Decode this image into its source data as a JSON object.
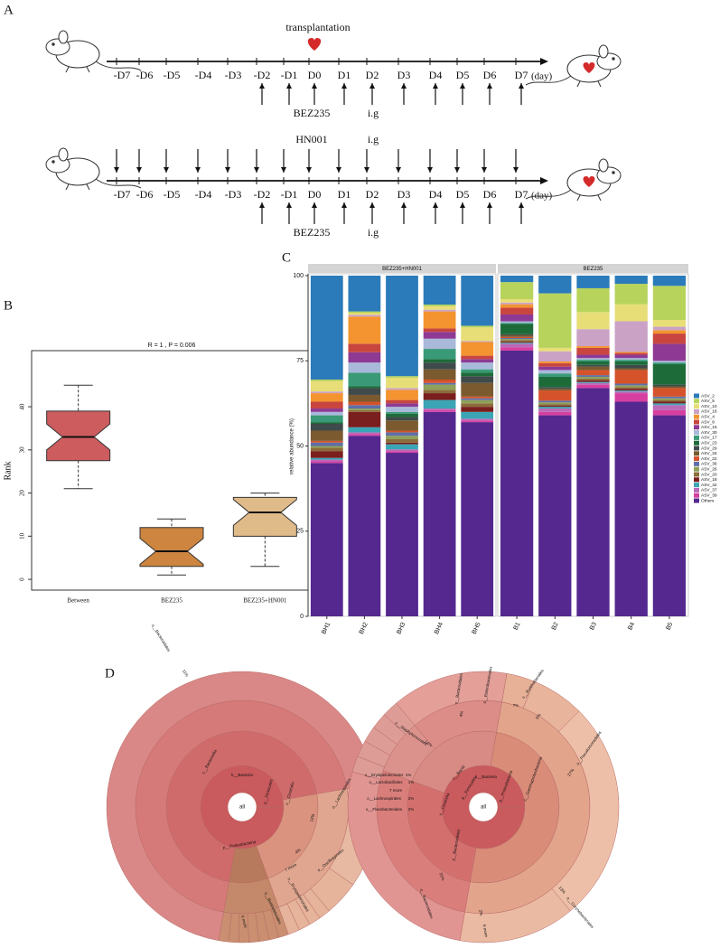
{
  "panel_labels": [
    "A",
    "B",
    "C",
    "D"
  ],
  "timeline": {
    "event": "transplantation",
    "days": [
      "-D7",
      "-D6",
      "-D5",
      "-D4",
      "-D3",
      "-D2",
      "-D1",
      "D0",
      "D1",
      "D2",
      "D3",
      "D4",
      "D5",
      "D6",
      "D7"
    ],
    "unit": "(day)",
    "drug": "BEZ235",
    "probiotic": "HN001",
    "route": "i.g"
  },
  "chart_data": [
    {
      "type": "box",
      "title": "R = 1 , P = 0.006",
      "y_label": "Rank",
      "categories": [
        "Between",
        "BEZ235",
        "BEZ235+HN001"
      ],
      "min": [
        21,
        1,
        3
      ],
      "q1": [
        27.5,
        3,
        10
      ],
      "median": [
        33,
        6.5,
        15.5
      ],
      "q3": [
        39,
        12,
        19
      ],
      "max": [
        45,
        14,
        20
      ],
      "colors": [
        "#cd5c5f",
        "#cd853f",
        "#e0bb8a"
      ],
      "ylim": [
        -2.5,
        53
      ],
      "yticks": [
        0,
        10,
        20,
        30,
        40
      ]
    },
    {
      "type": "stacked_bar",
      "y_label": "relative abundance (%)",
      "facets": [
        {
          "label": "BEZ235+HN001",
          "categories": [
            "BH1",
            "BH2",
            "BH3",
            "BH4",
            "BH5"
          ]
        },
        {
          "label": "BEZ235",
          "categories": [
            "B1",
            "B2",
            "B3",
            "B4",
            "B5"
          ]
        }
      ],
      "ylim": [
        0,
        100
      ],
      "yticks": [
        0,
        25,
        50,
        75,
        100
      ],
      "series": [
        {
          "name": "ASV_2",
          "color": "#2b7bba",
          "values": [
            30.5,
            10.5,
            29.5,
            8.5,
            14.7,
            1.9,
            5.2,
            3.7,
            2.4,
            3
          ]
        },
        {
          "name": "ASV_5",
          "color": "#b8d35c",
          "values": [
            0.5,
            0.5,
            0.5,
            0.5,
            0.5,
            5,
            16,
            7,
            6,
            10
          ]
        },
        {
          "name": "ASV_10",
          "color": "#e8de78",
          "values": [
            3,
            0.5,
            3,
            1,
            4,
            1,
            1,
            5,
            5,
            2
          ]
        },
        {
          "name": "ASV_16",
          "color": "#caa2c6",
          "values": [
            0.5,
            0.5,
            0.5,
            0.5,
            0.3,
            0.5,
            3,
            5,
            9,
            1
          ]
        },
        {
          "name": "ASV_4",
          "color": "#f39430",
          "values": [
            2.5,
            8,
            3,
            5,
            4,
            1,
            0.5,
            0.5,
            0.3,
            1
          ]
        },
        {
          "name": "ASV_8",
          "color": "#c8463f",
          "values": [
            2,
            2.5,
            1,
            1,
            1,
            2,
            1,
            2,
            0.5,
            3
          ]
        },
        {
          "name": "ASV_15",
          "color": "#8e3a94",
          "values": [
            1,
            3,
            1,
            2,
            1,
            2,
            1,
            1,
            1,
            5
          ]
        },
        {
          "name": "ASV_30",
          "color": "#a9b9da",
          "values": [
            1,
            3,
            1.5,
            3,
            2,
            0.5,
            1,
            0.5,
            0.5,
            0.5
          ]
        },
        {
          "name": "ASV_17",
          "color": "#3a9a78",
          "values": [
            2,
            4,
            0.5,
            3,
            1,
            0.3,
            1,
            0.5,
            0.5,
            0.5
          ]
        },
        {
          "name": "ASV_23",
          "color": "#1e6b3a",
          "values": [
            0.5,
            0.5,
            1,
            1,
            1,
            3,
            3,
            1,
            1,
            6
          ]
        },
        {
          "name": "ASV_29",
          "color": "#3f4a4a",
          "values": [
            2,
            2,
            1,
            2,
            2,
            0.3,
            0.5,
            0.5,
            1,
            0.5
          ]
        },
        {
          "name": "ASV_34",
          "color": "#7a5a2e",
          "values": [
            3,
            2,
            3,
            3,
            4,
            0.5,
            0.5,
            1,
            0.5,
            0.5
          ]
        },
        {
          "name": "ASV_22",
          "color": "#d5532b",
          "values": [
            0.5,
            1,
            0.5,
            1,
            0.5,
            0.3,
            3,
            1.5,
            4,
            2.5
          ]
        },
        {
          "name": "ASV_36",
          "color": "#5e6fa8",
          "values": [
            1,
            1,
            1,
            0.5,
            0.5,
            0.3,
            0.5,
            0.5,
            0.5,
            0.5
          ]
        },
        {
          "name": "ASV_26",
          "color": "#8fa05a",
          "values": [
            0.5,
            0.5,
            1,
            1.5,
            1,
            0.3,
            0.5,
            0.5,
            0.5,
            0.5
          ]
        },
        {
          "name": "ASV_20",
          "color": "#8b6d3a",
          "values": [
            1,
            0.5,
            1,
            1,
            1,
            0.5,
            0.5,
            0.5,
            0.5,
            0.5
          ]
        },
        {
          "name": "ASV_18",
          "color": "#7a1e1e",
          "values": [
            2,
            4.5,
            0.5,
            2,
            1.5,
            0.3,
            0.3,
            0.5,
            0.5,
            0.5
          ]
        },
        {
          "name": "ASV_42",
          "color": "#3aa6b5",
          "values": [
            0.5,
            1.5,
            1.5,
            2.5,
            2,
            0.3,
            0.5,
            0.3,
            0.3,
            0.5
          ]
        },
        {
          "name": "ASV_37",
          "color": "#b96ab8",
          "values": [
            0.5,
            0.5,
            0.5,
            0.5,
            0.5,
            1,
            1,
            0.5,
            0.5,
            1.5
          ]
        },
        {
          "name": "ASV_39",
          "color": "#d63fa0",
          "values": [
            0.5,
            0.5,
            0.5,
            0.5,
            0.5,
            1,
            1,
            1,
            2.5,
            1.5
          ]
        },
        {
          "name": "Others",
          "color": "#54288f",
          "values": [
            45,
            53,
            48,
            60,
            57,
            78,
            59,
            67,
            63,
            59
          ]
        }
      ]
    }
  ],
  "krona": {
    "left": {
      "labels": [
        "all",
        "k__Bacteria",
        "c__Bacteroidia",
        "o__Bacteroidales",
        "11%",
        "p__Firmicutes",
        "c__Clostridia",
        "p__Proteobacteria",
        "12%",
        "o__Lachnospirales",
        "4%",
        "o__Oscillospirales",
        "7 more",
        "o__Erysipelotrichales",
        "o__Burkholderiales",
        "6 more"
      ]
    },
    "right": {
      "labels": [
        "all",
        "k__Bacteria",
        "c__Bacilli",
        "p__Firmicutes",
        "p__Proteobacteria",
        "c__Gammaproteobacteria",
        "o__Staphylococcales",
        "14%",
        "o__Enterobacterales",
        "o__Bacteroidales",
        "4%",
        "7%",
        "o__Burkholderiales",
        "5%",
        "o__Pseudomonadales",
        "27%",
        "o__Erysipelotrichales",
        "1%",
        "o__Lactobacillales",
        "1%",
        "7 more",
        "o__Lachnospirales",
        "2%",
        "o__Flavobacteriales",
        "2%",
        "c__Clostridia",
        "p__Bacteroidetes",
        "o__Bacteroidales",
        "31%",
        "2%",
        "o__Corynebacteriales",
        "13%",
        "6 more"
      ]
    }
  }
}
